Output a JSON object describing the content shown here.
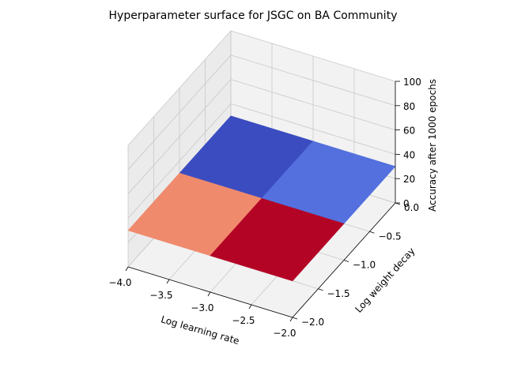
{
  "chart_data": {
    "type": "surface3d",
    "title": "Hyperparameter surface for JSGC on BA Community",
    "xlabel": "Log learning rate",
    "ylabel": "Log weight decay",
    "zlabel": "Accuracy after 1000 epochs",
    "xlim": [
      -4.0,
      -2.0
    ],
    "ylim": [
      -2.0,
      0.0
    ],
    "zlim": [
      0,
      100
    ],
    "x_ticks": [
      -4.0,
      -3.5,
      -3.0,
      -2.5,
      -2.0
    ],
    "x_tick_labels": [
      "−4.0",
      "−3.5",
      "−3.0",
      "−2.5",
      "−2.0"
    ],
    "y_ticks": [
      -2.0,
      -1.5,
      -1.0,
      -0.5,
      0.0
    ],
    "y_tick_labels": [
      "−2.0",
      "−1.5",
      "−1.0",
      "−0.5",
      "0.0"
    ],
    "z_ticks": [
      0,
      20,
      40,
      60,
      80,
      100
    ],
    "z_tick_labels": [
      "0",
      "20",
      "40",
      "60",
      "80",
      "100"
    ],
    "grid": true,
    "colormap": "coolwarm",
    "x": [
      -4.0,
      -3.0,
      -2.0
    ],
    "y": [
      -2.0,
      -1.0,
      0.0
    ],
    "z": [
      [
        30,
        30,
        30
      ],
      [
        30,
        30,
        30
      ],
      [
        30,
        30,
        30
      ]
    ],
    "facet_colors": [
      [
        "#f08a6d",
        "#b40426"
      ],
      [
        "#3b4cc0",
        "#5470de"
      ]
    ]
  },
  "colors": {
    "pane": "#f2f2f2",
    "pane_side": "#ebebeb",
    "grid": "#c8c8c8",
    "axis": "#000000"
  }
}
